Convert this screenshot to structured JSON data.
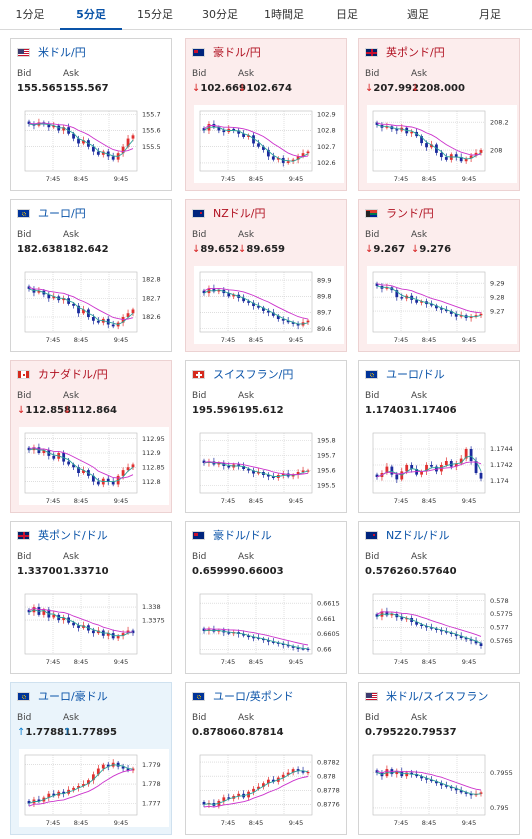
{
  "tabs": [
    "1分足",
    "5分足",
    "15分足",
    "30分足",
    "1時間足",
    "日足",
    "週足",
    "月足"
  ],
  "active_tab": 1,
  "labels": {
    "bid": "Bid",
    "ask": "Ask"
  },
  "x_ticks": [
    "7:45",
    "8:45",
    "9:45"
  ],
  "colors": {
    "link": "#0a53a8",
    "down_bg": "#fceded",
    "up_bg": "#eaf4fb",
    "candle_up": "#e03030",
    "candle_down": "#1a2a9c",
    "ma_fast": "#2aa198",
    "ma_slow": "#cc33cc"
  },
  "cards": [
    {
      "pair": "米ドル/円",
      "flag": "us-jp",
      "state": "neutral",
      "arrow": "",
      "bid": "155.565",
      "ask": "155.567",
      "chart_data": {
        "type": "candlestick",
        "ylim": [
          155.35,
          155.72
        ],
        "y_ticks": [
          "155.7",
          "155.6",
          "155.5"
        ],
        "close": [
          155.64,
          155.63,
          155.65,
          155.64,
          155.62,
          155.63,
          155.6,
          155.62,
          155.58,
          155.55,
          155.52,
          155.54,
          155.5,
          155.47,
          155.45,
          155.47,
          155.44,
          155.42,
          155.46,
          155.5,
          155.55,
          155.57
        ]
      }
    },
    {
      "pair": "豪ドル/円",
      "flag": "au-jp",
      "state": "down",
      "arrow": "down",
      "bid": "102.669",
      "ask": "102.674",
      "chart_data": {
        "type": "candlestick",
        "ylim": [
          102.55,
          102.92
        ],
        "y_ticks": [
          "102.9",
          "102.8",
          "102.7",
          "102.6"
        ],
        "close": [
          102.8,
          102.84,
          102.82,
          102.8,
          102.79,
          102.81,
          102.8,
          102.78,
          102.76,
          102.77,
          102.72,
          102.7,
          102.68,
          102.64,
          102.62,
          102.63,
          102.6,
          102.61,
          102.62,
          102.64,
          102.66,
          102.67
        ]
      }
    },
    {
      "pair": "英ポンド/円",
      "flag": "gb-jp",
      "state": "down",
      "arrow": "down",
      "bid": "207.992",
      "ask": "208.000",
      "chart_data": {
        "type": "candlestick",
        "ylim": [
          207.85,
          208.28
        ],
        "y_ticks": [
          "208.2",
          "208"
        ],
        "close": [
          208.18,
          208.16,
          208.17,
          208.15,
          208.14,
          208.16,
          208.12,
          208.13,
          208.1,
          208.05,
          208.02,
          208.04,
          207.98,
          207.95,
          207.93,
          207.97,
          207.95,
          207.92,
          207.94,
          207.96,
          207.98,
          208.0
        ]
      }
    },
    {
      "pair": "ユーロ/円",
      "flag": "eu-jp",
      "state": "neutral",
      "arrow": "",
      "bid": "182.638",
      "ask": "182.642",
      "chart_data": {
        "type": "candlestick",
        "ylim": [
          182.52,
          182.84
        ],
        "y_ticks": [
          "182.8",
          "182.7",
          "182.6"
        ],
        "close": [
          182.75,
          182.73,
          182.74,
          182.72,
          182.7,
          182.71,
          182.69,
          182.7,
          182.67,
          182.66,
          182.62,
          182.64,
          182.6,
          182.58,
          182.57,
          182.59,
          182.56,
          182.55,
          182.57,
          182.6,
          182.62,
          182.64
        ]
      }
    },
    {
      "pair": "NZドル/円",
      "flag": "nz-jp",
      "state": "down",
      "arrow": "down",
      "bid": "89.652",
      "ask": "89.659",
      "chart_data": {
        "type": "candlestick",
        "ylim": [
          89.58,
          89.95
        ],
        "y_ticks": [
          "89.9",
          "89.8",
          "89.7",
          "89.6"
        ],
        "close": [
          89.82,
          89.85,
          89.83,
          89.84,
          89.82,
          89.8,
          89.81,
          89.79,
          89.77,
          89.76,
          89.74,
          89.73,
          89.71,
          89.7,
          89.68,
          89.66,
          89.65,
          89.64,
          89.63,
          89.62,
          89.64,
          89.65
        ]
      }
    },
    {
      "pair": "ランド/円",
      "flag": "za-jp",
      "state": "down",
      "arrow": "down",
      "bid": "9.267",
      "ask": "9.276",
      "chart_data": {
        "type": "candlestick",
        "ylim": [
          9.255,
          9.298
        ],
        "y_ticks": [
          "9.29",
          "9.28",
          "9.27"
        ],
        "close": [
          9.288,
          9.286,
          9.287,
          9.285,
          9.28,
          9.279,
          9.281,
          9.278,
          9.276,
          9.277,
          9.275,
          9.274,
          9.272,
          9.271,
          9.27,
          9.268,
          9.266,
          9.267,
          9.265,
          9.266,
          9.267,
          9.268
        ]
      }
    },
    {
      "pair": "カナダドル/円",
      "flag": "ca-jp",
      "state": "down",
      "arrow": "down",
      "bid": "112.858",
      "ask": "112.864",
      "chart_data": {
        "type": "candlestick",
        "ylim": [
          112.76,
          112.97
        ],
        "y_ticks": [
          "112.95",
          "112.9",
          "112.85",
          "112.8"
        ],
        "close": [
          112.91,
          112.92,
          112.9,
          112.91,
          112.89,
          112.88,
          112.9,
          112.87,
          112.86,
          112.85,
          112.83,
          112.84,
          112.82,
          112.8,
          112.79,
          112.81,
          112.8,
          112.79,
          112.82,
          112.84,
          112.85,
          112.86
        ]
      }
    },
    {
      "pair": "スイスフラン/円",
      "flag": "ch-jp",
      "state": "neutral",
      "arrow": "",
      "bid": "195.596",
      "ask": "195.612",
      "chart_data": {
        "type": "candlestick",
        "ylim": [
          195.45,
          195.85
        ],
        "y_ticks": [
          "195.8",
          "195.7",
          "195.6",
          "195.5"
        ],
        "close": [
          195.65,
          195.66,
          195.64,
          195.65,
          195.63,
          195.62,
          195.64,
          195.63,
          195.61,
          195.6,
          195.58,
          195.59,
          195.57,
          195.56,
          195.55,
          195.57,
          195.58,
          195.56,
          195.57,
          195.59,
          195.6,
          195.6
        ]
      }
    },
    {
      "pair": "ユーロ/ドル",
      "flag": "eu-us",
      "state": "neutral",
      "arrow": "",
      "bid": "1.17403",
      "ask": "1.17406",
      "chart_data": {
        "type": "candlestick",
        "ylim": [
          1.17385,
          1.1746
        ],
        "y_ticks": [
          "1.1744",
          "1.1742",
          "1.174"
        ],
        "close": [
          1.17405,
          1.1741,
          1.17418,
          1.17408,
          1.17402,
          1.17412,
          1.1742,
          1.17415,
          1.17408,
          1.17412,
          1.1742,
          1.17418,
          1.17412,
          1.1742,
          1.17425,
          1.17418,
          1.17422,
          1.17428,
          1.1744,
          1.17425,
          1.1741,
          1.17403
        ]
      }
    },
    {
      "pair": "英ポンド/ドル",
      "flag": "gb-us",
      "state": "neutral",
      "arrow": "",
      "bid": "1.33700",
      "ask": "1.33710",
      "chart_data": {
        "type": "candlestick",
        "ylim": [
          1.3362,
          1.3385
        ],
        "y_ticks": [
          "1.338",
          "1.3375"
        ],
        "close": [
          1.3378,
          1.338,
          1.3377,
          1.3379,
          1.3376,
          1.3377,
          1.3375,
          1.3376,
          1.3374,
          1.3373,
          1.3372,
          1.3373,
          1.3371,
          1.337,
          1.3371,
          1.3369,
          1.337,
          1.3368,
          1.3369,
          1.337,
          1.3371,
          1.337
        ]
      }
    },
    {
      "pair": "豪ドル/ドル",
      "flag": "au-us",
      "state": "neutral",
      "arrow": "",
      "bid": "0.65999",
      "ask": "0.66003",
      "chart_data": {
        "type": "candlestick",
        "ylim": [
          0.65985,
          0.6618
        ],
        "y_ticks": [
          "0.6615",
          "0.661",
          "0.6605",
          "0.66"
        ],
        "close": [
          0.6606,
          0.66065,
          0.66058,
          0.66062,
          0.66055,
          0.66052,
          0.66056,
          0.6605,
          0.66045,
          0.6604,
          0.66038,
          0.66035,
          0.6603,
          0.66025,
          0.66022,
          0.66018,
          0.66015,
          0.6601,
          0.66005,
          0.66003,
          0.66002,
          0.66001
        ]
      }
    },
    {
      "pair": "NZドル/ドル",
      "flag": "nz-us",
      "state": "neutral",
      "arrow": "",
      "bid": "0.57626",
      "ask": "0.57640",
      "chart_data": {
        "type": "candlestick",
        "ylim": [
          0.576,
          0.57825
        ],
        "y_ticks": [
          "0.578",
          "0.5775",
          "0.577",
          "0.5765"
        ],
        "close": [
          0.5774,
          0.5776,
          0.57745,
          0.5775,
          0.57738,
          0.5773,
          0.57735,
          0.5772,
          0.5771,
          0.57705,
          0.577,
          0.57695,
          0.5769,
          0.57685,
          0.5768,
          0.57675,
          0.57668,
          0.5766,
          0.57655,
          0.5765,
          0.5764,
          0.5763
        ]
      }
    },
    {
      "pair": "ユーロ/豪ドル",
      "flag": "eu-au",
      "state": "up",
      "arrow": "up",
      "bid": "1.77881",
      "ask": "1.77895",
      "chart_data": {
        "type": "candlestick",
        "ylim": [
          1.7764,
          1.7795
        ],
        "y_ticks": [
          "1.779",
          "1.778",
          "1.777"
        ],
        "close": [
          1.777,
          1.7772,
          1.7771,
          1.7773,
          1.7775,
          1.7774,
          1.7776,
          1.7775,
          1.7777,
          1.7778,
          1.7779,
          1.778,
          1.7782,
          1.7785,
          1.7788,
          1.779,
          1.7789,
          1.7791,
          1.7789,
          1.7788,
          1.7787,
          1.7788
        ]
      }
    },
    {
      "pair": "ユーロ/英ポンド",
      "flag": "eu-gb",
      "state": "neutral",
      "arrow": "",
      "bid": "0.87806",
      "ask": "0.87814",
      "chart_data": {
        "type": "candlestick",
        "ylim": [
          0.87745,
          0.8783
        ],
        "y_ticks": [
          "0.8782",
          "0.878",
          "0.8778",
          "0.8776"
        ],
        "close": [
          0.8776,
          0.87762,
          0.87758,
          0.87765,
          0.8777,
          0.87768,
          0.87772,
          0.87775,
          0.8777,
          0.87778,
          0.87782,
          0.87785,
          0.8779,
          0.87795,
          0.87792,
          0.87798,
          0.87802,
          0.87805,
          0.8781,
          0.87808,
          0.87805,
          0.87806
        ]
      }
    },
    {
      "pair": "米ドル/スイスフラン",
      "flag": "us-ch",
      "state": "neutral",
      "arrow": "",
      "bid": "0.79522",
      "ask": "0.79537",
      "chart_data": {
        "type": "candlestick",
        "ylim": [
          0.7949,
          0.79575
        ],
        "y_ticks": [
          "0.7955",
          "0.795"
        ],
        "close": [
          0.7955,
          0.79545,
          0.79555,
          0.79548,
          0.79552,
          0.79545,
          0.7955,
          0.79548,
          0.79545,
          0.79542,
          0.7954,
          0.79538,
          0.79535,
          0.79532,
          0.7953,
          0.79528,
          0.79525,
          0.79522,
          0.7952,
          0.79518,
          0.7952,
          0.79522
        ]
      }
    }
  ]
}
